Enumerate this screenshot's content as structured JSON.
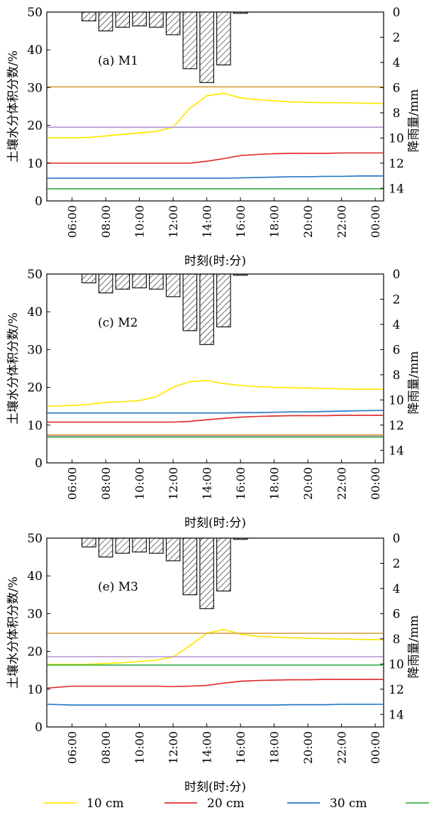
{
  "chart_data": [
    {
      "type": "line",
      "panel_label": "(a) M1",
      "xlabel": "时刻(时:分)",
      "ylabel_left": "土壤水分体积分数/%",
      "ylabel_right": "降雨量/mm",
      "x": [
        "05:00",
        "06:00",
        "07:00",
        "08:00",
        "09:00",
        "10:00",
        "11:00",
        "12:00",
        "13:00",
        "14:00",
        "15:00",
        "16:00",
        "17:00",
        "18:00",
        "19:00",
        "20:00",
        "21:00",
        "22:00",
        "23:00",
        "00:00"
      ],
      "xticks": [
        "06:00",
        "08:00",
        "10:00",
        "12:00",
        "14:00",
        "16:00",
        "18:00",
        "20:00",
        "22:00",
        "00:00"
      ],
      "ylim": [
        0,
        50
      ],
      "yticks": [
        0,
        10,
        20,
        30,
        40,
        50
      ],
      "rain_ylim": [
        0,
        15
      ],
      "rain_yticks": [
        0,
        2,
        4,
        6,
        8,
        10,
        12,
        14
      ],
      "rainfall": {
        "x": [
          "07:00",
          "08:00",
          "09:00",
          "10:00",
          "11:00",
          "12:00",
          "13:00",
          "14:00",
          "15:00",
          "16:00"
        ],
        "values": [
          0.7,
          1.5,
          1.2,
          1.1,
          1.2,
          1.8,
          4.5,
          5.6,
          4.2,
          0.1
        ]
      },
      "series": [
        {
          "name": "10 cm",
          "color": "#ffe600",
          "values": [
            16.7,
            16.7,
            16.8,
            17.2,
            17.6,
            18.0,
            18.4,
            19.5,
            24.5,
            27.8,
            28.5,
            27.3,
            26.8,
            26.5,
            26.2,
            26.1,
            26.0,
            26.0,
            25.9,
            25.8
          ]
        },
        {
          "name": "20 cm",
          "color": "#e03030",
          "values": [
            10.0,
            10.0,
            10.0,
            10.0,
            10.0,
            10.0,
            10.0,
            10.0,
            10.0,
            10.5,
            11.2,
            12.0,
            12.3,
            12.5,
            12.6,
            12.6,
            12.6,
            12.7,
            12.7,
            12.7
          ]
        },
        {
          "name": "30 cm",
          "color": "#2a78c8",
          "values": [
            6.0,
            6.0,
            6.0,
            6.0,
            6.0,
            6.0,
            6.0,
            6.0,
            6.0,
            6.0,
            6.0,
            6.1,
            6.2,
            6.3,
            6.4,
            6.4,
            6.5,
            6.5,
            6.6,
            6.6
          ]
        },
        {
          "name": "",
          "color": "#3cb44b",
          "values": [
            3.2,
            3.2,
            3.2,
            3.2,
            3.2,
            3.2,
            3.2,
            3.2,
            3.2,
            3.2,
            3.2,
            3.2,
            3.2,
            3.2,
            3.2,
            3.2,
            3.2,
            3.2,
            3.2,
            3.2
          ]
        },
        {
          "name": "",
          "color": "#b89ad8",
          "values": [
            19.5,
            19.5,
            19.5,
            19.5,
            19.5,
            19.5,
            19.5,
            19.5,
            19.5,
            19.5,
            19.5,
            19.5,
            19.5,
            19.5,
            19.5,
            19.5,
            19.5,
            19.5,
            19.5,
            19.5
          ]
        },
        {
          "name": "",
          "color": "#d9a040",
          "values": [
            30.2,
            30.2,
            30.2,
            30.2,
            30.2,
            30.2,
            30.2,
            30.2,
            30.2,
            30.2,
            30.2,
            30.2,
            30.2,
            30.2,
            30.2,
            30.2,
            30.2,
            30.2,
            30.2,
            30.2
          ]
        }
      ]
    },
    {
      "type": "line",
      "panel_label": "(c) M2",
      "xlabel": "时刻(时:分)",
      "ylabel_left": "土壤水分体积分数/%",
      "ylabel_right": "降雨量/mm",
      "x": [
        "05:00",
        "06:00",
        "07:00",
        "08:00",
        "09:00",
        "10:00",
        "11:00",
        "12:00",
        "13:00",
        "14:00",
        "15:00",
        "16:00",
        "17:00",
        "18:00",
        "19:00",
        "20:00",
        "21:00",
        "22:00",
        "23:00",
        "00:00"
      ],
      "xticks": [
        "06:00",
        "08:00",
        "10:00",
        "12:00",
        "14:00",
        "16:00",
        "18:00",
        "20:00",
        "22:00",
        "00:00"
      ],
      "ylim": [
        0,
        50
      ],
      "yticks": [
        0,
        10,
        20,
        30,
        40,
        50
      ],
      "rain_ylim": [
        0,
        15
      ],
      "rain_yticks": [
        0,
        2,
        4,
        6,
        8,
        10,
        12,
        14
      ],
      "rainfall": {
        "x": [
          "07:00",
          "08:00",
          "09:00",
          "10:00",
          "11:00",
          "12:00",
          "13:00",
          "14:00",
          "15:00",
          "16:00"
        ],
        "values": [
          0.7,
          1.5,
          1.2,
          1.1,
          1.2,
          1.8,
          4.5,
          5.6,
          4.2,
          0.1
        ]
      },
      "series": [
        {
          "name": "10 cm",
          "color": "#ffe600",
          "values": [
            15.0,
            15.2,
            15.5,
            16.0,
            16.2,
            16.5,
            17.5,
            20.0,
            21.5,
            21.8,
            21.0,
            20.5,
            20.2,
            20.0,
            19.9,
            19.8,
            19.7,
            19.6,
            19.5,
            19.5
          ]
        },
        {
          "name": "20 cm",
          "color": "#e03030",
          "values": [
            10.8,
            10.8,
            10.8,
            10.8,
            10.8,
            10.8,
            10.8,
            10.8,
            11.0,
            11.4,
            11.8,
            12.1,
            12.3,
            12.4,
            12.5,
            12.5,
            12.5,
            12.6,
            12.6,
            12.6
          ]
        },
        {
          "name": "30 cm",
          "color": "#2a78c8",
          "values": [
            13.2,
            13.2,
            13.2,
            13.2,
            13.2,
            13.2,
            13.2,
            13.2,
            13.2,
            13.2,
            13.2,
            13.3,
            13.3,
            13.4,
            13.5,
            13.5,
            13.6,
            13.7,
            13.8,
            13.9
          ]
        },
        {
          "name": "",
          "color": "#3cb44b",
          "values": [
            6.8,
            6.8,
            6.8,
            6.8,
            6.8,
            6.8,
            6.8,
            6.8,
            6.8,
            6.8,
            6.8,
            6.8,
            6.8,
            6.8,
            6.8,
            6.8,
            6.8,
            6.8,
            6.8,
            6.8
          ]
        },
        {
          "name": "",
          "color": "#b89ad8",
          "values": [
            7.1,
            7.1,
            7.1,
            7.1,
            7.1,
            7.1,
            7.1,
            7.1,
            7.1,
            7.1,
            7.1,
            7.1,
            7.1,
            7.1,
            7.1,
            7.1,
            7.1,
            7.1,
            7.1,
            7.1
          ]
        },
        {
          "name": "",
          "color": "#d9a040",
          "values": [
            7.4,
            7.4,
            7.4,
            7.4,
            7.4,
            7.4,
            7.4,
            7.4,
            7.4,
            7.4,
            7.4,
            7.4,
            7.4,
            7.4,
            7.4,
            7.4,
            7.4,
            7.4,
            7.4,
            7.4
          ]
        }
      ]
    },
    {
      "type": "line",
      "panel_label": "(e) M3",
      "xlabel": "时刻(时:分)",
      "ylabel_left": "土壤水分体积分数/%",
      "ylabel_right": "降雨量/mm",
      "x": [
        "05:00",
        "06:00",
        "07:00",
        "08:00",
        "09:00",
        "10:00",
        "11:00",
        "12:00",
        "13:00",
        "14:00",
        "15:00",
        "16:00",
        "17:00",
        "18:00",
        "19:00",
        "20:00",
        "21:00",
        "22:00",
        "23:00",
        "00:00"
      ],
      "xticks": [
        "06:00",
        "08:00",
        "10:00",
        "12:00",
        "14:00",
        "16:00",
        "18:00",
        "20:00",
        "22:00",
        "00:00"
      ],
      "ylim": [
        0,
        50
      ],
      "yticks": [
        0,
        10,
        20,
        30,
        40,
        50
      ],
      "rain_ylim": [
        0,
        15
      ],
      "rain_yticks": [
        0,
        2,
        4,
        6,
        8,
        10,
        12,
        14
      ],
      "rainfall": {
        "x": [
          "07:00",
          "08:00",
          "09:00",
          "10:00",
          "11:00",
          "12:00",
          "13:00",
          "14:00",
          "15:00",
          "16:00"
        ],
        "values": [
          0.7,
          1.5,
          1.2,
          1.1,
          1.2,
          1.8,
          4.5,
          5.6,
          4.2,
          0.1
        ]
      },
      "series": [
        {
          "name": "10 cm",
          "color": "#ffe600",
          "values": [
            16.6,
            16.6,
            16.6,
            16.8,
            17.0,
            17.3,
            17.7,
            18.5,
            21.5,
            24.8,
            25.8,
            24.6,
            24.0,
            23.8,
            23.6,
            23.5,
            23.4,
            23.3,
            23.2,
            23.1
          ]
        },
        {
          "name": "20 cm",
          "color": "#e03030",
          "values": [
            10.3,
            10.8,
            10.8,
            10.8,
            10.8,
            10.8,
            10.8,
            10.7,
            10.8,
            11.0,
            11.6,
            12.1,
            12.3,
            12.4,
            12.5,
            12.5,
            12.6,
            12.6,
            12.6,
            12.6
          ]
        },
        {
          "name": "30 cm",
          "color": "#2a78c8",
          "values": [
            6.0,
            5.8,
            5.8,
            5.8,
            5.8,
            5.8,
            5.8,
            5.8,
            5.8,
            5.8,
            5.8,
            5.8,
            5.8,
            5.8,
            5.9,
            5.9,
            5.9,
            6.0,
            6.0,
            6.0
          ]
        },
        {
          "name": "",
          "color": "#3cb44b",
          "values": [
            16.4,
            16.4,
            16.4,
            16.4,
            16.4,
            16.4,
            16.4,
            16.4,
            16.4,
            16.4,
            16.4,
            16.4,
            16.4,
            16.4,
            16.4,
            16.4,
            16.4,
            16.4,
            16.4,
            16.4
          ]
        },
        {
          "name": "",
          "color": "#b89ad8",
          "values": [
            18.6,
            18.6,
            18.6,
            18.6,
            18.6,
            18.6,
            18.6,
            18.6,
            18.6,
            18.6,
            18.6,
            18.6,
            18.6,
            18.6,
            18.6,
            18.6,
            18.6,
            18.6,
            18.6,
            18.6
          ]
        },
        {
          "name": "",
          "color": "#d9a040",
          "values": [
            24.8,
            24.8,
            24.8,
            24.8,
            24.8,
            24.8,
            24.8,
            24.8,
            24.8,
            24.8,
            24.8,
            24.8,
            24.8,
            24.8,
            24.8,
            24.8,
            24.8,
            24.8,
            24.8,
            24.8
          ]
        }
      ]
    }
  ],
  "legend": [
    {
      "label": "10 cm",
      "color": "#ffe600"
    },
    {
      "label": "20 cm",
      "color": "#e03030"
    },
    {
      "label": "30 cm",
      "color": "#2a78c8"
    },
    {
      "label": "",
      "color": "#3cb44b"
    }
  ]
}
